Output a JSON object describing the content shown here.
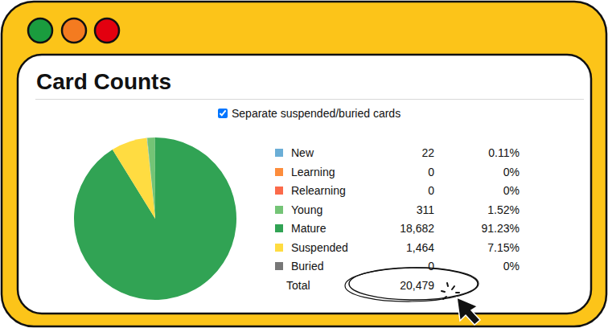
{
  "chart_data": {
    "type": "pie",
    "title": "Card Counts",
    "checkbox": {
      "label": "Separate suspended/buried cards",
      "checked": true
    },
    "categories": [
      "New",
      "Learning",
      "Relearning",
      "Young",
      "Mature",
      "Suspended",
      "Buried"
    ],
    "values": [
      22,
      0,
      0,
      311,
      18682,
      1464,
      0
    ],
    "value_labels": [
      "22",
      "0",
      "0",
      "311",
      "18,682",
      "1,464",
      "0"
    ],
    "percent_labels": [
      "0.11%",
      "0%",
      "0%",
      "1.52%",
      "91.23%",
      "7.15%",
      "0%"
    ],
    "colors": [
      "#6baed6",
      "#fd8d3c",
      "#fb6a4a",
      "#74c476",
      "#31a354",
      "#ffdc41",
      "#777777"
    ],
    "total": {
      "label": "Total",
      "value": 20479,
      "value_label": "20,479"
    },
    "legend": "right",
    "data_labels": false
  }
}
